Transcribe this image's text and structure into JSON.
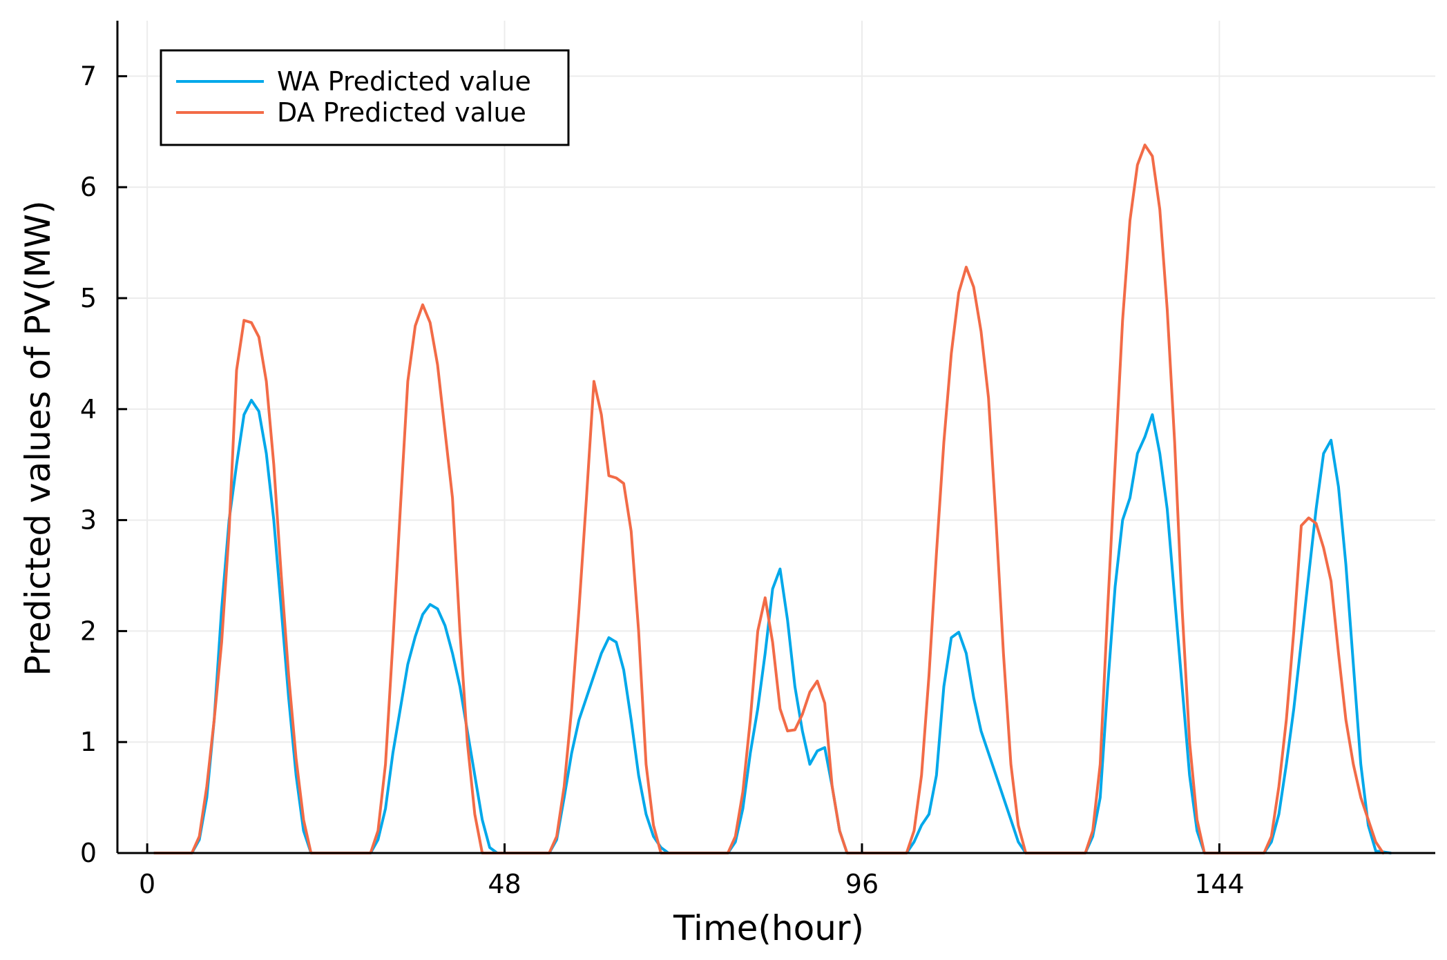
{
  "chart_data": {
    "type": "line",
    "xlabel": "Time(hour)",
    "ylabel": "Predicted values of PV(MW)",
    "xlim": [
      -4,
      173
    ],
    "ylim": [
      0,
      7.5
    ],
    "xticks": [
      0,
      48,
      96,
      144
    ],
    "yticks": [
      0,
      1,
      2,
      3,
      4,
      5,
      6,
      7
    ],
    "grid": true,
    "legend_position": "top-left",
    "series": [
      {
        "name": "WA Predicted value",
        "color": "#00a8ea",
        "points": [
          [
            1,
            0
          ],
          [
            6,
            0
          ],
          [
            7,
            0.12
          ],
          [
            8,
            0.5
          ],
          [
            9,
            1.2
          ],
          [
            10,
            2.2
          ],
          [
            11,
            3.0
          ],
          [
            12,
            3.5
          ],
          [
            13,
            3.95
          ],
          [
            14,
            4.08
          ],
          [
            15,
            3.98
          ],
          [
            16,
            3.6
          ],
          [
            17,
            3.0
          ],
          [
            18,
            2.2
          ],
          [
            19,
            1.4
          ],
          [
            20,
            0.7
          ],
          [
            21,
            0.2
          ],
          [
            22,
            0
          ],
          [
            30,
            0
          ],
          [
            31,
            0.12
          ],
          [
            32,
            0.4
          ],
          [
            33,
            0.9
          ],
          [
            34,
            1.3
          ],
          [
            35,
            1.7
          ],
          [
            36,
            1.95
          ],
          [
            37,
            2.15
          ],
          [
            38,
            2.24
          ],
          [
            39,
            2.2
          ],
          [
            40,
            2.05
          ],
          [
            41,
            1.8
          ],
          [
            42,
            1.5
          ],
          [
            43,
            1.1
          ],
          [
            44,
            0.7
          ],
          [
            45,
            0.3
          ],
          [
            46,
            0.05
          ],
          [
            47,
            0
          ],
          [
            54,
            0
          ],
          [
            55,
            0.12
          ],
          [
            56,
            0.5
          ],
          [
            57,
            0.9
          ],
          [
            58,
            1.2
          ],
          [
            59,
            1.4
          ],
          [
            60,
            1.6
          ],
          [
            61,
            1.8
          ],
          [
            62,
            1.94
          ],
          [
            63,
            1.9
          ],
          [
            64,
            1.65
          ],
          [
            65,
            1.2
          ],
          [
            66,
            0.7
          ],
          [
            67,
            0.35
          ],
          [
            68,
            0.15
          ],
          [
            69,
            0.05
          ],
          [
            70,
            0
          ],
          [
            78,
            0
          ],
          [
            79,
            0.1
          ],
          [
            80,
            0.4
          ],
          [
            81,
            0.9
          ],
          [
            82,
            1.3
          ],
          [
            83,
            1.8
          ],
          [
            84,
            2.38
          ],
          [
            85,
            2.56
          ],
          [
            86,
            2.1
          ],
          [
            87,
            1.5
          ],
          [
            88,
            1.1
          ],
          [
            89,
            0.8
          ],
          [
            90,
            0.92
          ],
          [
            91,
            0.95
          ],
          [
            92,
            0.6
          ],
          [
            93,
            0.2
          ],
          [
            94,
            0
          ],
          [
            102,
            0
          ],
          [
            103,
            0.1
          ],
          [
            104,
            0.25
          ],
          [
            105,
            0.35
          ],
          [
            106,
            0.7
          ],
          [
            107,
            1.5
          ],
          [
            108,
            1.94
          ],
          [
            109,
            1.99
          ],
          [
            110,
            1.8
          ],
          [
            111,
            1.4
          ],
          [
            112,
            1.1
          ],
          [
            113,
            0.9
          ],
          [
            114,
            0.7
          ],
          [
            115,
            0.5
          ],
          [
            116,
            0.3
          ],
          [
            117,
            0.1
          ],
          [
            118,
            0
          ],
          [
            126,
            0
          ],
          [
            127,
            0.15
          ],
          [
            128,
            0.5
          ],
          [
            129,
            1.5
          ],
          [
            130,
            2.4
          ],
          [
            131,
            3.0
          ],
          [
            132,
            3.2
          ],
          [
            133,
            3.6
          ],
          [
            134,
            3.75
          ],
          [
            135,
            3.95
          ],
          [
            136,
            3.6
          ],
          [
            137,
            3.1
          ],
          [
            138,
            2.3
          ],
          [
            139,
            1.5
          ],
          [
            140,
            0.7
          ],
          [
            141,
            0.2
          ],
          [
            142,
            0
          ],
          [
            150,
            0
          ],
          [
            151,
            0.1
          ],
          [
            152,
            0.35
          ],
          [
            153,
            0.8
          ],
          [
            154,
            1.3
          ],
          [
            155,
            1.9
          ],
          [
            156,
            2.5
          ],
          [
            157,
            3.1
          ],
          [
            158,
            3.6
          ],
          [
            159,
            3.72
          ],
          [
            160,
            3.3
          ],
          [
            161,
            2.6
          ],
          [
            162,
            1.7
          ],
          [
            163,
            0.8
          ],
          [
            164,
            0.25
          ],
          [
            165,
            0.02
          ],
          [
            167,
            0
          ]
        ]
      },
      {
        "name": "DA Predicted value",
        "color": "#f26b47",
        "points": [
          [
            1,
            0
          ],
          [
            6,
            0
          ],
          [
            7,
            0.15
          ],
          [
            8,
            0.6
          ],
          [
            9,
            1.2
          ],
          [
            10,
            1.9
          ],
          [
            11,
            2.9
          ],
          [
            12,
            4.35
          ],
          [
            13,
            4.8
          ],
          [
            14,
            4.78
          ],
          [
            15,
            4.65
          ],
          [
            16,
            4.25
          ],
          [
            17,
            3.5
          ],
          [
            18,
            2.5
          ],
          [
            19,
            1.6
          ],
          [
            20,
            0.85
          ],
          [
            21,
            0.3
          ],
          [
            22,
            0
          ],
          [
            30,
            0
          ],
          [
            31,
            0.2
          ],
          [
            32,
            0.8
          ],
          [
            33,
            1.9
          ],
          [
            34,
            3.1
          ],
          [
            35,
            4.25
          ],
          [
            36,
            4.75
          ],
          [
            37,
            4.94
          ],
          [
            38,
            4.78
          ],
          [
            39,
            4.4
          ],
          [
            40,
            3.8
          ],
          [
            41,
            3.2
          ],
          [
            42,
            2.0
          ],
          [
            43,
            1.0
          ],
          [
            44,
            0.35
          ],
          [
            45,
            0
          ],
          [
            54,
            0
          ],
          [
            55,
            0.15
          ],
          [
            56,
            0.6
          ],
          [
            57,
            1.3
          ],
          [
            58,
            2.2
          ],
          [
            59,
            3.2
          ],
          [
            60,
            4.25
          ],
          [
            61,
            3.95
          ],
          [
            62,
            3.4
          ],
          [
            63,
            3.38
          ],
          [
            64,
            3.33
          ],
          [
            65,
            2.9
          ],
          [
            66,
            2.0
          ],
          [
            67,
            0.8
          ],
          [
            68,
            0.25
          ],
          [
            69,
            0
          ],
          [
            78,
            0
          ],
          [
            79,
            0.15
          ],
          [
            80,
            0.55
          ],
          [
            81,
            1.2
          ],
          [
            82,
            2.0
          ],
          [
            83,
            2.3
          ],
          [
            84,
            1.9
          ],
          [
            85,
            1.3
          ],
          [
            86,
            1.1
          ],
          [
            87,
            1.11
          ],
          [
            88,
            1.25
          ],
          [
            89,
            1.45
          ],
          [
            90,
            1.55
          ],
          [
            91,
            1.35
          ],
          [
            92,
            0.6
          ],
          [
            93,
            0.2
          ],
          [
            94,
            0
          ],
          [
            102,
            0
          ],
          [
            103,
            0.2
          ],
          [
            104,
            0.7
          ],
          [
            105,
            1.6
          ],
          [
            106,
            2.7
          ],
          [
            107,
            3.7
          ],
          [
            108,
            4.5
          ],
          [
            109,
            5.05
          ],
          [
            110,
            5.28
          ],
          [
            111,
            5.1
          ],
          [
            112,
            4.7
          ],
          [
            113,
            4.1
          ],
          [
            114,
            3.0
          ],
          [
            115,
            1.8
          ],
          [
            116,
            0.8
          ],
          [
            117,
            0.25
          ],
          [
            118,
            0
          ],
          [
            126,
            0
          ],
          [
            127,
            0.2
          ],
          [
            128,
            0.8
          ],
          [
            129,
            2.2
          ],
          [
            130,
            3.5
          ],
          [
            131,
            4.8
          ],
          [
            132,
            5.7
          ],
          [
            133,
            6.2
          ],
          [
            134,
            6.38
          ],
          [
            135,
            6.28
          ],
          [
            136,
            5.8
          ],
          [
            137,
            4.9
          ],
          [
            138,
            3.7
          ],
          [
            139,
            2.2
          ],
          [
            140,
            1.0
          ],
          [
            141,
            0.3
          ],
          [
            142,
            0
          ],
          [
            150,
            0
          ],
          [
            151,
            0.15
          ],
          [
            152,
            0.6
          ],
          [
            153,
            1.2
          ],
          [
            154,
            2.0
          ],
          [
            155,
            2.95
          ],
          [
            156,
            3.02
          ],
          [
            157,
            2.97
          ],
          [
            158,
            2.75
          ],
          [
            159,
            2.45
          ],
          [
            160,
            1.8
          ],
          [
            161,
            1.2
          ],
          [
            162,
            0.8
          ],
          [
            163,
            0.5
          ],
          [
            164,
            0.3
          ],
          [
            165,
            0.1
          ],
          [
            166,
            0
          ]
        ]
      }
    ]
  }
}
